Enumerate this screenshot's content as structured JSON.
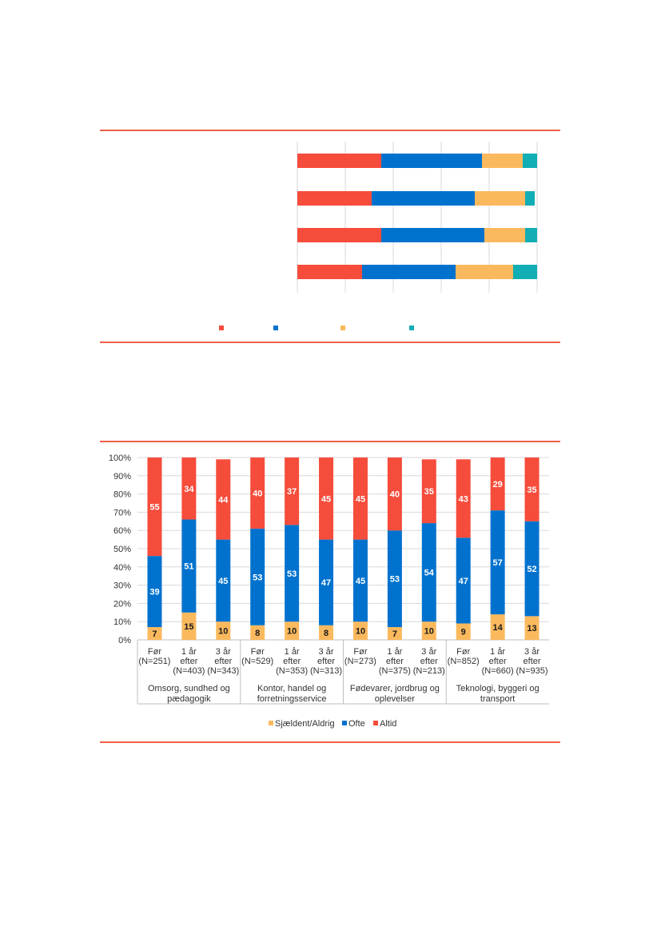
{
  "chart_data": [
    {
      "type": "bar",
      "orientation": "horizontal",
      "stacked": true,
      "note_text": "",
      "bars": [
        {
          "values": [
            35,
            42,
            17,
            6
          ]
        },
        {
          "values": [
            31,
            43,
            21,
            4
          ]
        },
        {
          "values": [
            35,
            43,
            17,
            5
          ]
        },
        {
          "values": [
            27,
            39,
            24,
            10
          ]
        }
      ],
      "series_colors": [
        "#f64c3b",
        "#0072ce",
        "#fbb95e",
        "#12aeb5"
      ],
      "xlim": [
        0,
        100
      ],
      "grid": true,
      "legend_position": "bottom"
    },
    {
      "type": "bar",
      "stacked": true,
      "percent": true,
      "ylim": [
        0,
        100
      ],
      "yticks": [
        "0%",
        "10%",
        "20%",
        "30%",
        "40%",
        "50%",
        "60%",
        "70%",
        "80%",
        "90%",
        "100%"
      ],
      "grid": true,
      "legend_position": "bottom",
      "categories": [
        {
          "line1": "Før",
          "line2": "(N=251)",
          "line3": ""
        },
        {
          "line1": "1 år",
          "line2": "efter",
          "line3": "(N=403)"
        },
        {
          "line1": "3 år",
          "line2": "efter",
          "line3": "(N=343)"
        },
        {
          "line1": "Før",
          "line2": "(N=529)",
          "line3": ""
        },
        {
          "line1": "1 år",
          "line2": "efter",
          "line3": "(N=353)"
        },
        {
          "line1": "3 år",
          "line2": "efter",
          "line3": "(N=313)"
        },
        {
          "line1": "Før",
          "line2": "(N=273)",
          "line3": ""
        },
        {
          "line1": "1 år",
          "line2": "efter",
          "line3": "(N=375)"
        },
        {
          "line1": "3 år",
          "line2": "efter",
          "line3": "(N=213)"
        },
        {
          "line1": "Før",
          "line2": "(N=852)",
          "line3": ""
        },
        {
          "line1": "1 år",
          "line2": "efter",
          "line3": "(N=660)"
        },
        {
          "line1": "3 år",
          "line2": "efter",
          "line3": "(N=935)"
        }
      ],
      "groups": [
        {
          "line1": "Omsorg, sundhed og",
          "line2": "pædagogik"
        },
        {
          "line1": "Kontor, handel og",
          "line2": "forretningsservice"
        },
        {
          "line1": "Fødevarer, jordbrug og",
          "line2": "oplevelser"
        },
        {
          "line1": "Teknologi, byggeri og",
          "line2": "transport"
        }
      ],
      "series": [
        {
          "name": "Sjældent/Aldrig",
          "color": "#fbb95e",
          "label_color": "#1a1a1a",
          "values": [
            7,
            15,
            10,
            8,
            10,
            8,
            10,
            7,
            10,
            9,
            14,
            13
          ]
        },
        {
          "name": "Ofte",
          "color": "#0072ce",
          "label_color": "#ffffff",
          "values": [
            39,
            51,
            45,
            53,
            53,
            47,
            45,
            53,
            54,
            47,
            57,
            52
          ]
        },
        {
          "name": "Altid",
          "color": "#f64c3b",
          "label_color": "#ffffff",
          "values": [
            55,
            34,
            44,
            40,
            37,
            45,
            45,
            40,
            35,
            43,
            29,
            35
          ]
        }
      ]
    }
  ]
}
